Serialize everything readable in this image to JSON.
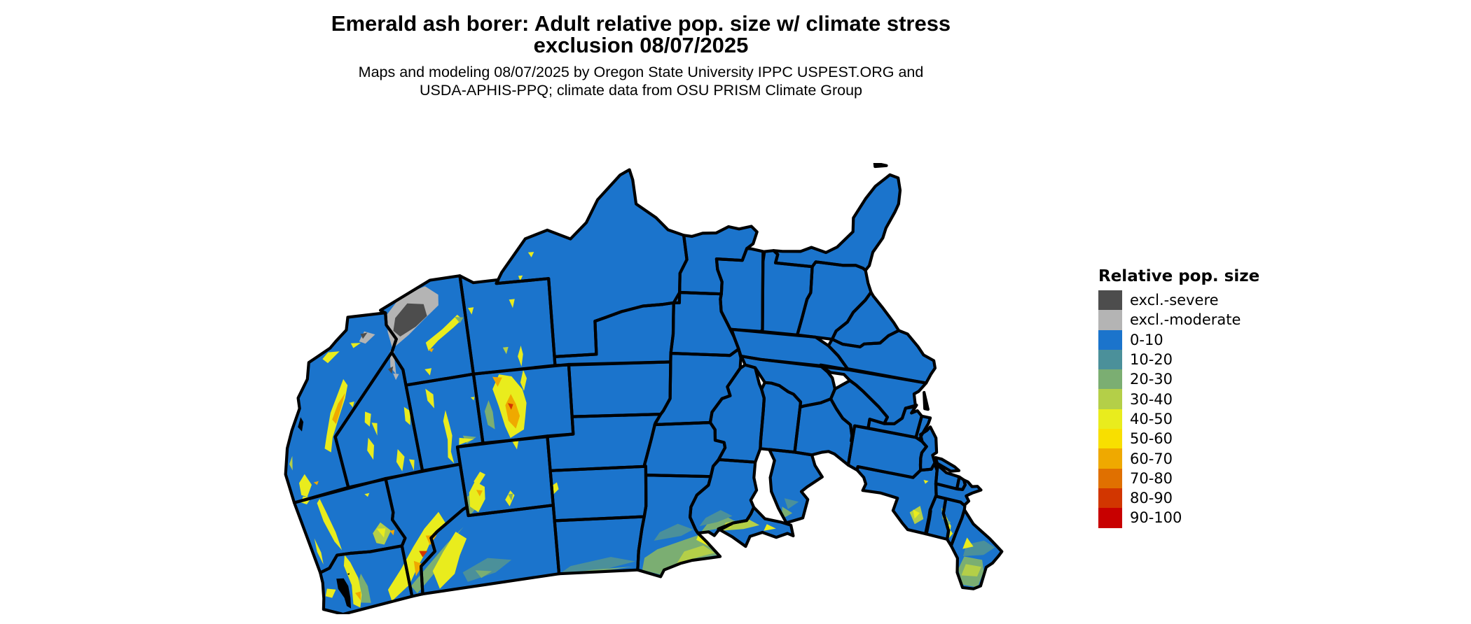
{
  "title": {
    "line1": "Emerald ash borer: Adult relative pop. size w/ climate stress",
    "line2": "exclusion 08/07/2025"
  },
  "subtitle": {
    "line1": "Maps and modeling 08/07/2025 by Oregon State University IPPC USPEST.ORG and",
    "line2": "USDA-APHIS-PPQ; climate data from OSU PRISM Climate Group"
  },
  "legend": {
    "title": "Relative pop. size",
    "items": [
      {
        "key": "sev",
        "label": "excl.-severe",
        "color": "#4D4D4D"
      },
      {
        "key": "mod",
        "label": "excl.-moderate",
        "color": "#B4B4B4"
      },
      {
        "key": "b",
        "label": "0-10",
        "color": "#1B74CC"
      },
      {
        "key": "t",
        "label": "10-20",
        "color": "#4B909A"
      },
      {
        "key": "g",
        "label": "20-30",
        "color": "#7BAE72"
      },
      {
        "key": "yg",
        "label": "30-40",
        "color": "#B4CF48"
      },
      {
        "key": "y",
        "label": "40-50",
        "color": "#E9EC1D"
      },
      {
        "key": "gold",
        "label": "50-60",
        "color": "#F8DF00"
      },
      {
        "key": "o",
        "label": "60-70",
        "color": "#EFA900"
      },
      {
        "key": "do",
        "label": "70-80",
        "color": "#E07000"
      },
      {
        "key": "ro",
        "label": "80-90",
        "color": "#D23600"
      },
      {
        "key": "r",
        "label": "90-100",
        "color": "#C80000"
      }
    ]
  },
  "map": {
    "region": "Contiguous United States",
    "border_color": "#000000",
    "background": "#FFFFFF"
  }
}
